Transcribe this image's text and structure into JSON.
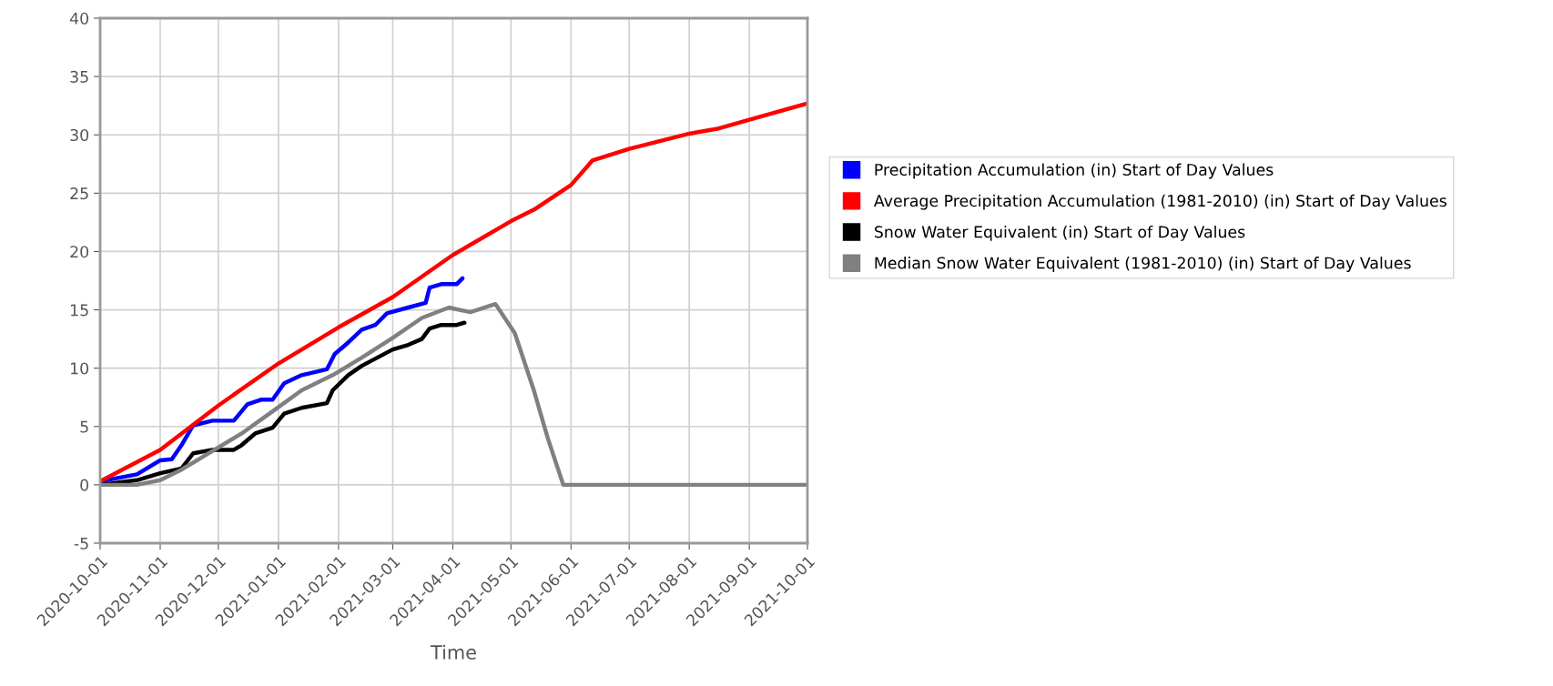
{
  "chart_data": {
    "type": "line",
    "xlabel": "Time",
    "xlim": [
      "2020-10-01",
      "2021-10-01"
    ],
    "xticks": [
      "2020-10-01",
      "2020-11-01",
      "2020-12-01",
      "2021-01-01",
      "2021-02-01",
      "2021-03-01",
      "2021-04-01",
      "2021-05-01",
      "2021-06-01",
      "2021-07-01",
      "2021-08-01",
      "2021-09-01",
      "2021-10-01"
    ],
    "ylim": [
      -5,
      40
    ],
    "yticks": [
      -5,
      0,
      5,
      10,
      15,
      20,
      25,
      30,
      35,
      40
    ],
    "grid": true,
    "legend": "right",
    "line_style": "solid",
    "marker": "none",
    "series": [
      {
        "name": "Precipitation Accumulation (in) Start of Day Values",
        "color": "#0000ff",
        "x": [
          "2020-10-01",
          "2020-10-20",
          "2020-11-01",
          "2020-11-07",
          "2020-11-12",
          "2020-11-18",
          "2020-11-28",
          "2020-12-09",
          "2020-12-16",
          "2020-12-23",
          "2020-12-29",
          "2021-01-04",
          "2021-01-13",
          "2021-01-26",
          "2021-01-30",
          "2021-02-06",
          "2021-02-13",
          "2021-02-20",
          "2021-02-26",
          "2021-03-09",
          "2021-03-18",
          "2021-03-20",
          "2021-03-26",
          "2021-04-03",
          "2021-04-06"
        ],
        "values": [
          0.3,
          0.9,
          2.1,
          2.2,
          3.4,
          5.1,
          5.5,
          5.5,
          6.9,
          7.3,
          7.3,
          8.7,
          9.4,
          9.9,
          11.2,
          12.2,
          13.3,
          13.7,
          14.7,
          15.2,
          15.6,
          16.9,
          17.2,
          17.2,
          17.7
        ]
      },
      {
        "name": "Average Precipitation Accumulation (1981-2010) (in) Start of Day Values",
        "color": "#ff0000",
        "x": [
          "2020-10-01",
          "2020-11-01",
          "2020-12-01",
          "2021-01-01",
          "2021-02-01",
          "2021-03-01",
          "2021-04-01",
          "2021-05-01",
          "2021-05-13",
          "2021-06-01",
          "2021-06-12",
          "2021-07-01",
          "2021-08-01",
          "2021-08-15",
          "2021-09-01",
          "2021-10-01"
        ],
        "values": [
          0.3,
          3.0,
          6.8,
          10.4,
          13.5,
          16.1,
          19.7,
          22.6,
          23.6,
          25.7,
          27.8,
          28.8,
          30.1,
          30.5,
          31.3,
          32.7
        ]
      },
      {
        "name": "Snow Water Equivalent (in) Start of Day Values",
        "color": "#000000",
        "x": [
          "2020-10-01",
          "2020-10-20",
          "2020-11-01",
          "2020-11-12",
          "2020-11-18",
          "2020-11-28",
          "2020-12-09",
          "2020-12-13",
          "2020-12-20",
          "2020-12-29",
          "2021-01-04",
          "2021-01-13",
          "2021-01-26",
          "2021-01-29",
          "2021-02-06",
          "2021-02-13",
          "2021-02-21",
          "2021-03-01",
          "2021-03-09",
          "2021-03-16",
          "2021-03-20",
          "2021-03-26",
          "2021-04-03",
          "2021-04-07"
        ],
        "values": [
          0.0,
          0.4,
          1.0,
          1.4,
          2.7,
          3.0,
          3.0,
          3.4,
          4.4,
          4.9,
          6.1,
          6.6,
          7.0,
          8.1,
          9.4,
          10.2,
          10.9,
          11.6,
          12.0,
          12.5,
          13.4,
          13.7,
          13.7,
          13.9
        ]
      },
      {
        "name": "Median Snow Water Equivalent (1981-2010) (in) Start of Day Values",
        "color": "#808080",
        "x": [
          "2020-10-01",
          "2020-10-20",
          "2020-11-01",
          "2020-11-12",
          "2020-11-28",
          "2020-12-13",
          "2020-12-29",
          "2021-01-13",
          "2021-01-29",
          "2021-02-13",
          "2021-03-01",
          "2021-03-16",
          "2021-03-30",
          "2021-04-10",
          "2021-04-23",
          "2021-05-03",
          "2021-05-13",
          "2021-05-20",
          "2021-05-28",
          "2021-10-01"
        ],
        "values": [
          0.0,
          0.0,
          0.4,
          1.3,
          2.9,
          4.4,
          6.3,
          8.1,
          9.4,
          10.9,
          12.6,
          14.3,
          15.2,
          14.8,
          15.5,
          13.0,
          8.0,
          4.0,
          0.0,
          0.0
        ]
      }
    ]
  }
}
